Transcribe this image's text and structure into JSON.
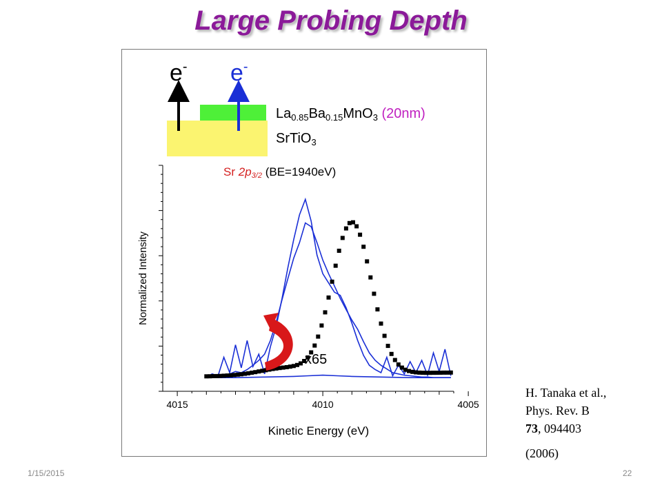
{
  "title": "Large Probing Depth",
  "diagram": {
    "electron_left": "e",
    "electron_right": "e",
    "electron_sup": "-",
    "film_formula": {
      "la": "La",
      "la_sub": "0.85",
      "ba": "Ba",
      "ba_sub": "0.15",
      "mn": "MnO",
      "o_sub": "3"
    },
    "film_thickness": "(20nm)",
    "substrate": {
      "main": "SrTiO",
      "sub": "3"
    },
    "colors": {
      "film": "#4ef038",
      "substrate": "#fbf470",
      "thickness": "#c020c0",
      "right_arrow": "#1a2fd6"
    }
  },
  "peak_label": {
    "element": "Sr",
    "orbital": "2p",
    "orbital_sub": "3/2",
    "binding": "(BE=1940eV)"
  },
  "multiplier": "x65",
  "reference": {
    "line1": "H. Tanaka et al.,",
    "line2": "Phys. Rev. B",
    "volume": "73",
    "pages": ", 094403",
    "year": "(2006)"
  },
  "footer": {
    "date": "1/15/2015",
    "page": "22"
  },
  "chart_data": {
    "type": "line",
    "xlabel": "Kinetic Energy (eV)",
    "ylabel": "Normalized Intensity",
    "xlim": [
      4015.5,
      4005.5
    ],
    "x_reversed": true,
    "ylim": [
      -0.2,
      3.45
    ],
    "xticks": [
      4015,
      4010,
      4005
    ],
    "xtick_labels": [
      "4015",
      "4010",
      "4005"
    ],
    "grid": false,
    "series": [
      {
        "color": "#1a2fd6",
        "style": "solid",
        "x": [
          4014,
          4013.8,
          4013.5,
          4013.2,
          4013,
          4012.8,
          4012.6,
          4012.4,
          4012.2,
          4012,
          4011.8,
          4011.6,
          4011.4,
          4011.2,
          4011,
          4010.8,
          4010.6,
          4010.4,
          4010.2,
          4010,
          4009.8,
          4009.6,
          4009.4,
          4009.2,
          4009,
          4008.8,
          4008.6,
          4008.4,
          4008.2,
          4008,
          4007.8,
          4007.6,
          4007.4,
          4007.2,
          4007,
          4006.8,
          4006.6,
          4006.4,
          4006.2,
          4006,
          4005.8,
          4005.6
        ],
        "y": [
          0.02,
          0.05,
          0.03,
          0.08,
          0.12,
          0.1,
          0.15,
          0.22,
          0.3,
          0.4,
          0.62,
          0.92,
          1.28,
          1.62,
          1.95,
          2.2,
          2.52,
          2.46,
          2.2,
          1.92,
          1.7,
          1.5,
          1.3,
          1.12,
          0.95,
          0.8,
          0.6,
          0.42,
          0.3,
          0.22,
          0.16,
          0.1,
          0.08,
          0.06,
          0.05,
          0.04,
          0.03,
          0.03,
          0.02,
          0.02,
          0.02,
          0.02
        ]
      },
      {
        "color": "#1a2fd6",
        "style": "solid",
        "noisy": true,
        "x": [
          4014,
          4013.8,
          4013.6,
          4013.4,
          4013.2,
          4013,
          4012.8,
          4012.6,
          4012.4,
          4012.2,
          4012,
          4011.8,
          4011.6,
          4011.4,
          4011.2,
          4011,
          4010.8,
          4010.6,
          4010.4,
          4010.2,
          4010,
          4009.8,
          4009.6,
          4009.4,
          4009.2,
          4009,
          4008.8,
          4008.6,
          4008.4,
          4008.2,
          4008,
          4007.8,
          4007.6,
          4007.4,
          4007.2,
          4007,
          4006.8,
          4006.6,
          4006.4,
          4006.2,
          4006,
          4005.8,
          4005.6
        ],
        "y": [
          0.03,
          0.08,
          0.05,
          0.35,
          0.1,
          0.55,
          0.18,
          0.62,
          0.2,
          0.4,
          0.08,
          0.52,
          0.85,
          1.3,
          1.8,
          2.25,
          2.65,
          2.9,
          2.55,
          2.0,
          1.7,
          1.55,
          1.4,
          1.35,
          1.15,
          0.9,
          0.62,
          0.38,
          0.22,
          0.15,
          0.1,
          0.35,
          0.05,
          0.22,
          0.08,
          0.28,
          0.1,
          0.3,
          0.06,
          0.42,
          0.12,
          0.48,
          0.05
        ]
      },
      {
        "color": "#1a2fd6",
        "style": "solid",
        "x": [
          4014,
          4013,
          4012,
          4011,
          4010.5,
          4010,
          4009.5,
          4009,
          4008,
          4007,
          4006,
          4005.6
        ],
        "y": [
          0.02,
          0.02,
          0.03,
          0.04,
          0.05,
          0.06,
          0.05,
          0.04,
          0.03,
          0.02,
          0.02,
          0.02
        ]
      }
    ]
  }
}
